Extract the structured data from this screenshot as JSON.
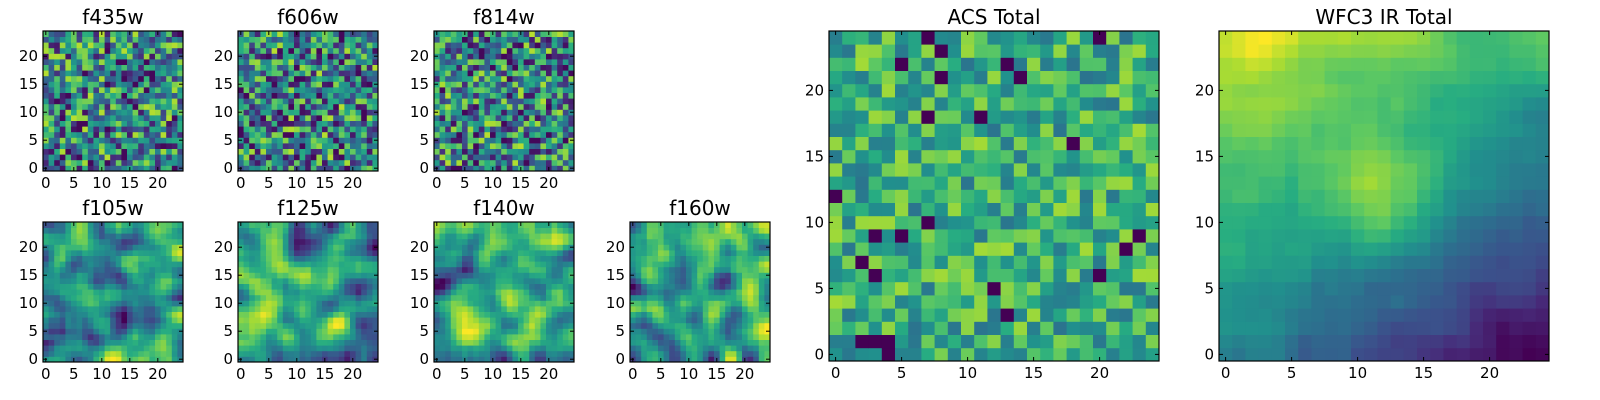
{
  "chart_data": [
    {
      "type": "heatmap",
      "title": "f435w",
      "size": 25,
      "xticks": [
        0,
        5,
        10,
        15,
        20
      ],
      "yticks": [
        0,
        5,
        10,
        15,
        20
      ],
      "xlim": [
        0,
        25
      ],
      "ylim": [
        0,
        25
      ],
      "colormap": "viridis",
      "texture": "noise",
      "seed": 11,
      "vmin": 0,
      "vmax": 1
    },
    {
      "type": "heatmap",
      "title": "f606w",
      "size": 25,
      "xticks": [
        0,
        5,
        10,
        15,
        20
      ],
      "yticks": [
        0,
        5,
        10,
        15,
        20
      ],
      "xlim": [
        0,
        25
      ],
      "ylim": [
        0,
        25
      ],
      "colormap": "viridis",
      "texture": "noise",
      "seed": 23,
      "vmin": 0,
      "vmax": 1
    },
    {
      "type": "heatmap",
      "title": "f814w",
      "size": 25,
      "xticks": [
        0,
        5,
        10,
        15,
        20
      ],
      "yticks": [
        0,
        5,
        10,
        15,
        20
      ],
      "xlim": [
        0,
        25
      ],
      "ylim": [
        0,
        25
      ],
      "colormap": "viridis",
      "texture": "noise",
      "seed": 37,
      "vmin": 0,
      "vmax": 1
    },
    {
      "type": "heatmap",
      "title": "f105w",
      "size": 25,
      "xticks": [
        0,
        5,
        10,
        15,
        20
      ],
      "yticks": [
        0,
        5,
        10,
        15,
        20
      ],
      "xlim": [
        0,
        25
      ],
      "ylim": [
        0,
        25
      ],
      "colormap": "viridis",
      "texture": "smooth",
      "seed": 41,
      "vmin": 0,
      "vmax": 1
    },
    {
      "type": "heatmap",
      "title": "f125w",
      "size": 25,
      "xticks": [
        0,
        5,
        10,
        15,
        20
      ],
      "yticks": [
        0,
        5,
        10,
        15,
        20
      ],
      "xlim": [
        0,
        25
      ],
      "ylim": [
        0,
        25
      ],
      "colormap": "viridis",
      "texture": "smooth",
      "seed": 53,
      "vmin": 0,
      "vmax": 1
    },
    {
      "type": "heatmap",
      "title": "f140w",
      "size": 25,
      "xticks": [
        0,
        5,
        10,
        15,
        20
      ],
      "yticks": [
        0,
        5,
        10,
        15,
        20
      ],
      "xlim": [
        0,
        25
      ],
      "ylim": [
        0,
        25
      ],
      "colormap": "viridis",
      "texture": "smooth",
      "seed": 67,
      "vmin": 0,
      "vmax": 1
    },
    {
      "type": "heatmap",
      "title": "f160w",
      "size": 25,
      "xticks": [
        0,
        5,
        10,
        15,
        20
      ],
      "yticks": [
        0,
        5,
        10,
        15,
        20
      ],
      "xlim": [
        0,
        25
      ],
      "ylim": [
        0,
        25
      ],
      "colormap": "viridis",
      "texture": "smooth",
      "seed": 79,
      "vmin": 0,
      "vmax": 1
    },
    {
      "type": "heatmap",
      "title": "ACS Total",
      "size": 25,
      "xticks": [
        0,
        5,
        10,
        15,
        20
      ],
      "yticks": [
        0,
        5,
        10,
        15,
        20
      ],
      "xlim": [
        0,
        25
      ],
      "ylim": [
        0,
        25
      ],
      "colormap": "viridis",
      "texture": "coarse",
      "seed": 97,
      "vmin": 0,
      "vmax": 1
    },
    {
      "type": "heatmap",
      "title": "WFC3 IR Total",
      "size": 25,
      "xticks": [
        0,
        5,
        10,
        15,
        20
      ],
      "yticks": [
        0,
        5,
        10,
        15,
        20
      ],
      "xlim": [
        0,
        25
      ],
      "ylim": [
        0,
        25
      ],
      "colormap": "viridis",
      "texture": "gradient",
      "seed": 113,
      "vmin": 0,
      "vmax": 1
    }
  ]
}
